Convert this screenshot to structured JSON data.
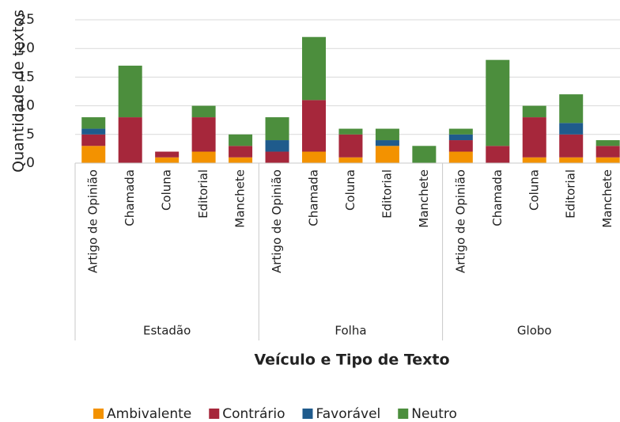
{
  "chart_data": {
    "type": "stacked_bar",
    "y_label": "Quantidade de textos",
    "x_label": "Veículo e Tipo de Texto",
    "groups": [
      "Estadão",
      "Folha",
      "Globo"
    ],
    "categories": [
      "Artigo de Opinião",
      "Chamada",
      "Coluna",
      "Editorial",
      "Manchete",
      "Artigo de Opinião",
      "Chamada",
      "Coluna",
      "Editorial",
      "Manchete",
      "Artigo de Opinião",
      "Chamada",
      "Coluna",
      "Editorial",
      "Manchete"
    ],
    "series": [
      {
        "name": "Ambivalente",
        "color": "#f39200",
        "values": [
          3,
          0,
          1,
          2,
          1,
          0,
          2,
          1,
          3,
          0,
          2,
          0,
          1,
          1,
          1
        ]
      },
      {
        "name": "Contrário",
        "color": "#a6273b",
        "values": [
          2,
          8,
          1,
          6,
          2,
          2,
          9,
          4,
          0,
          0,
          2,
          3,
          7,
          4,
          2
        ]
      },
      {
        "name": "Favorável",
        "color": "#1f5b8c",
        "values": [
          1,
          0,
          0,
          0,
          0,
          2,
          0,
          0,
          1,
          0,
          1,
          0,
          0,
          2,
          0
        ]
      },
      {
        "name": "Neutro",
        "color": "#4c8e3d",
        "values": [
          2,
          9,
          0,
          2,
          2,
          4,
          11,
          1,
          2,
          3,
          1,
          15,
          2,
          5,
          1
        ]
      }
    ],
    "ylim": [
      0,
      25
    ],
    "yticks": [
      0,
      5,
      10,
      15,
      20,
      25
    ],
    "grid": true,
    "legend": "bottom"
  }
}
